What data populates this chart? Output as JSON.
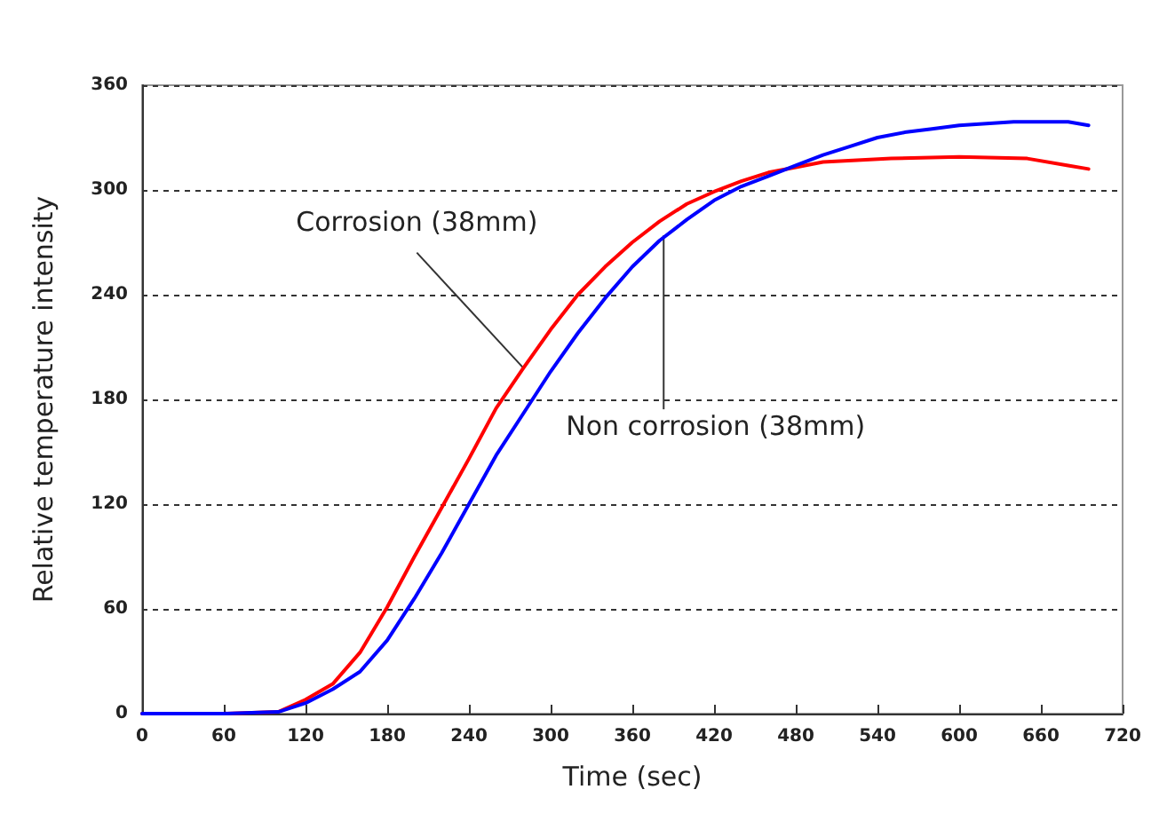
{
  "chart_data": {
    "type": "line",
    "xlabel": "Time (sec)",
    "ylabel": "Relative temperature intensity",
    "xlim": [
      0,
      720
    ],
    "xticks": [
      0,
      60,
      120,
      180,
      240,
      300,
      360,
      420,
      480,
      540,
      600,
      660,
      720
    ],
    "ylim": [
      0,
      360
    ],
    "yticks": [
      0,
      60,
      120,
      180,
      240,
      300,
      360
    ],
    "grid": "y",
    "marker": "none",
    "line_style": "solid",
    "series": [
      {
        "color": "#ff0000",
        "x": [
          0,
          60,
          100,
          120,
          140,
          160,
          180,
          200,
          220,
          240,
          260,
          280,
          300,
          320,
          340,
          360,
          380,
          400,
          420,
          440,
          460,
          480,
          500,
          550,
          600,
          650,
          680,
          695
        ],
        "values": [
          0,
          0,
          1,
          8,
          17,
          35,
          61,
          90,
          118,
          146,
          175,
          198,
          220,
          240,
          256,
          270,
          282,
          292,
          299,
          305,
          310,
          313,
          316,
          318,
          319,
          318,
          314,
          312
        ]
      },
      {
        "color": "#0000ff",
        "x": [
          0,
          60,
          100,
          120,
          140,
          160,
          180,
          200,
          220,
          240,
          260,
          280,
          300,
          320,
          340,
          360,
          380,
          400,
          420,
          440,
          460,
          480,
          500,
          520,
          540,
          560,
          580,
          600,
          640,
          680,
          695
        ],
        "values": [
          0,
          0,
          1,
          6,
          14,
          24,
          42,
          66,
          92,
          120,
          148,
          172,
          196,
          218,
          238,
          256,
          271,
          283,
          294,
          302,
          308,
          314,
          320,
          325,
          330,
          333,
          335,
          337,
          339,
          339,
          337
        ]
      }
    ],
    "annotations": [
      {
        "text": "Corrosion (38mm)",
        "x": 280,
        "y": 198
      },
      {
        "text": "Non corrosion (38mm)",
        "x": 383,
        "y": 274
      }
    ]
  }
}
